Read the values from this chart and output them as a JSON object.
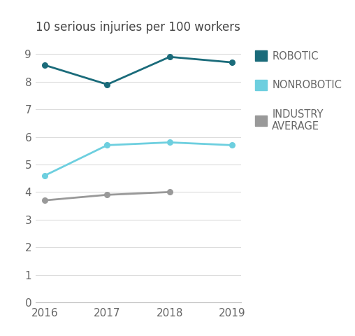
{
  "years": [
    2016,
    2017,
    2018,
    2019
  ],
  "robotic": [
    8.6,
    7.9,
    8.9,
    8.7
  ],
  "nonrobotic": [
    4.6,
    5.7,
    5.8,
    5.7
  ],
  "industry_avg": [
    3.7,
    3.9,
    4.0,
    null
  ],
  "robotic_color": "#1a6b7a",
  "nonrobotic_color": "#6dcfdf",
  "industry_color": "#999999",
  "title": "10 serious injuries per 100 workers",
  "title_fontsize": 12,
  "tick_fontsize": 11,
  "legend_fontsize": 10.5,
  "ylim": [
    0,
    9.5
  ],
  "yticks": [
    0,
    1,
    2,
    3,
    4,
    5,
    6,
    7,
    8,
    9
  ],
  "background_color": "#ffffff",
  "grid_color": "#dddddd"
}
